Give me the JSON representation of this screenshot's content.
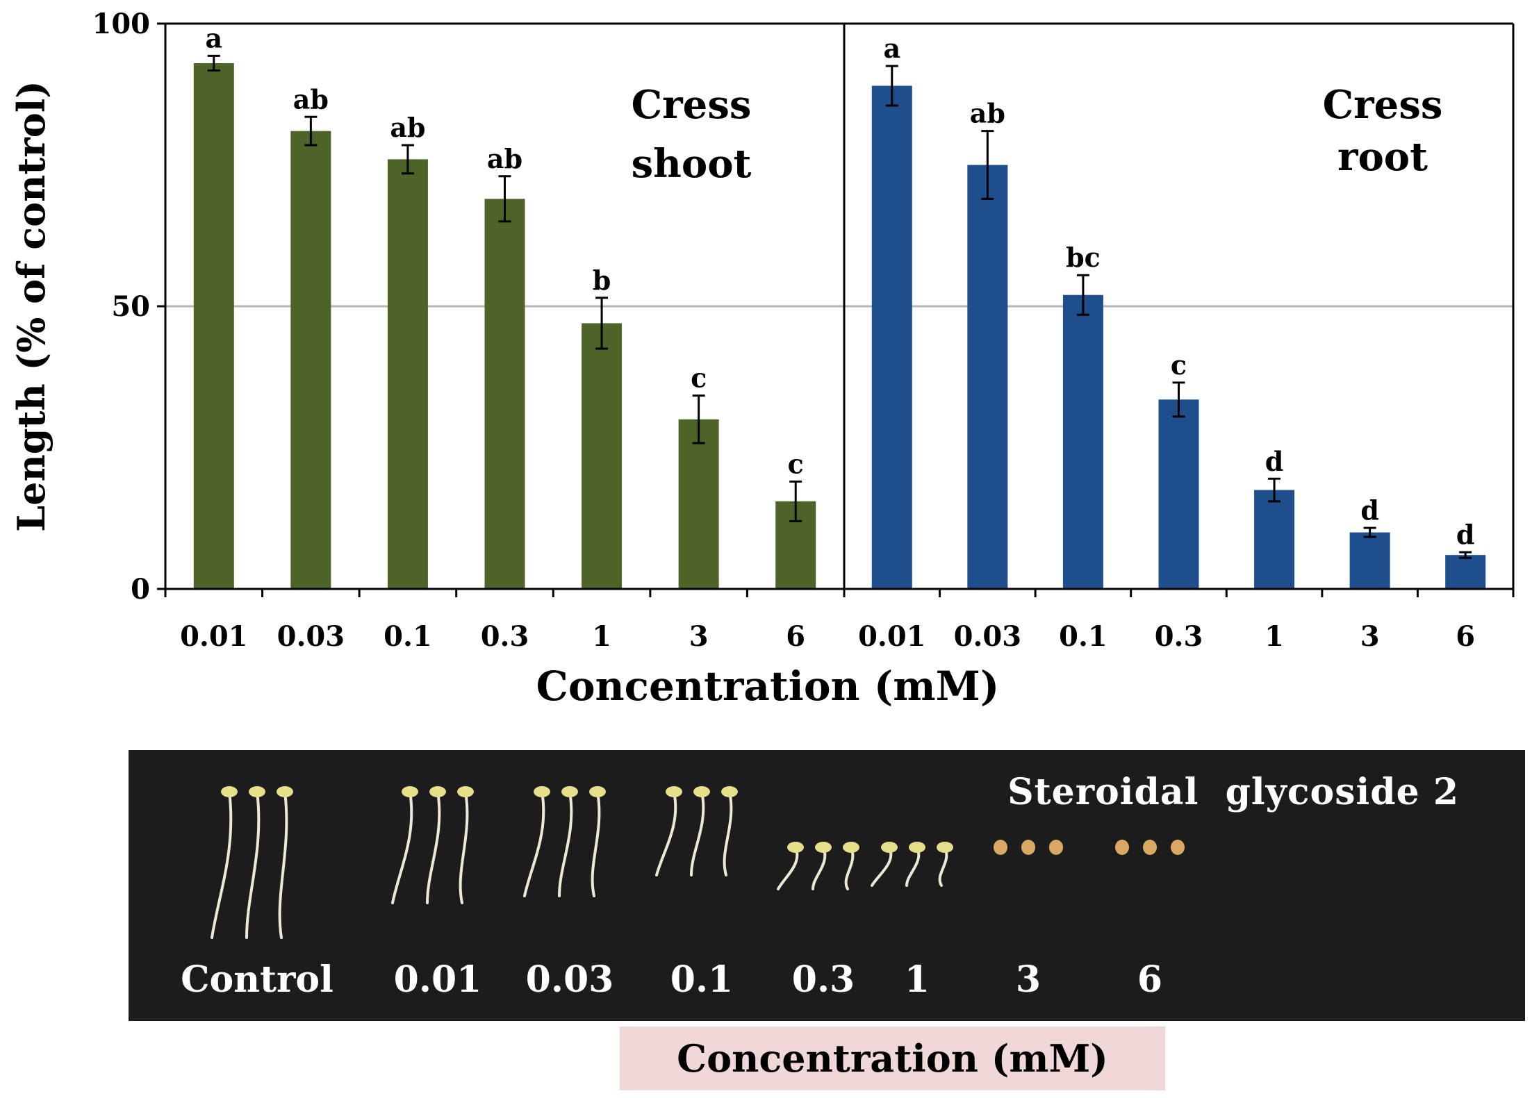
{
  "chart_data": {
    "type": "bar",
    "ylabel": "Length (% of control)",
    "xlabel": "Concentration (mM)",
    "ylim": [
      0,
      100
    ],
    "yticks": [
      "0",
      "50",
      "100"
    ],
    "grid": true,
    "color_shoot": "#4d6327",
    "color_root": "#1f4e8c",
    "panels": [
      {
        "name": "Cress shoot",
        "label_lines": [
          "Cress",
          "shoot"
        ],
        "categories": [
          "0.01",
          "0.03",
          "0.1",
          "0.3",
          "1",
          "3",
          "6"
        ],
        "values": [
          93,
          81,
          76,
          69,
          47,
          30,
          15.5
        ],
        "errors": [
          1.3,
          2.5,
          2.5,
          4,
          4.5,
          4.2,
          3.5
        ],
        "letters": [
          "a",
          "ab",
          "ab",
          "ab",
          "b",
          "c",
          "c"
        ]
      },
      {
        "name": "Cress root",
        "label_lines": [
          "Cress",
          "root"
        ],
        "categories": [
          "0.01",
          "0.03",
          "0.1",
          "0.3",
          "1",
          "3",
          "6"
        ],
        "values": [
          89,
          75,
          52,
          33.5,
          17.5,
          10,
          6
        ],
        "errors": [
          3.5,
          6,
          3.5,
          3,
          2,
          0.8,
          0.5
        ],
        "letters": [
          "a",
          "ab",
          "bc",
          "c",
          "d",
          "d",
          "d"
        ]
      }
    ]
  },
  "photo": {
    "title": "Steroidal  glycoside 2",
    "labels": [
      "Control",
      "0.01",
      "0.03",
      "0.1",
      "0.3",
      "1",
      "3",
      "6"
    ]
  },
  "footer": {
    "label": "Concentration (mM)"
  }
}
